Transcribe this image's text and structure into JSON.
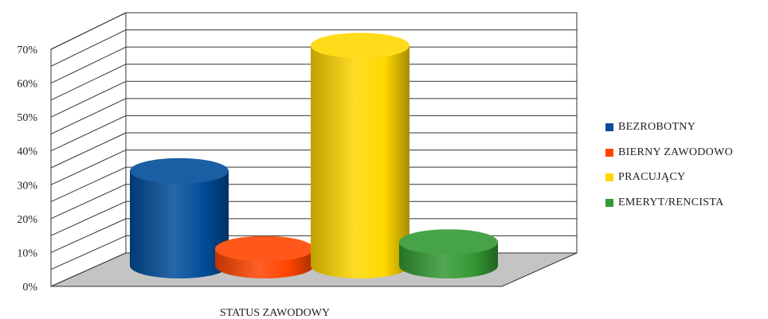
{
  "chart_data": {
    "type": "bar",
    "xlabel": "STATUS ZAWODOWY",
    "ylim": [
      0,
      70
    ],
    "yticks": [
      "0%",
      "10%",
      "20%",
      "30%",
      "40%",
      "50%",
      "60%",
      "70%"
    ],
    "grid": true,
    "legend_position": "right",
    "series": [
      {
        "name": "BEZROBOTNY",
        "value": 28,
        "color": "#004D99"
      },
      {
        "name": "BIERNY ZAWODOWO",
        "value": 5,
        "color": "#FF4500"
      },
      {
        "name": "PRACUJĄCY",
        "value": 65,
        "color": "#FFD700"
      },
      {
        "name": "EMERYT/RENCISTA",
        "value": 7,
        "color": "#339933"
      }
    ]
  }
}
